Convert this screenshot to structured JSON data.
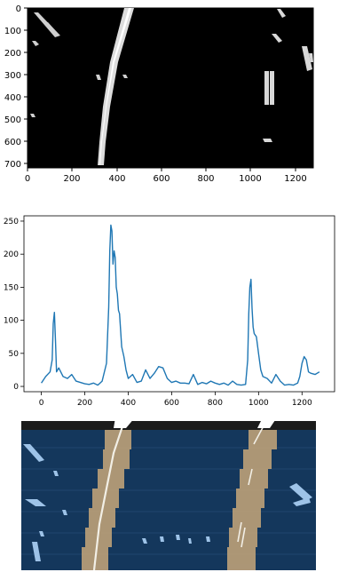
{
  "panels": {
    "binary_image": {
      "x_ticks": [
        "0",
        "200",
        "400",
        "600",
        "800",
        "1000",
        "1200"
      ],
      "y_ticks": [
        "0",
        "100",
        "200",
        "300",
        "400",
        "500",
        "600",
        "700"
      ],
      "xlim": [
        0,
        1280
      ],
      "ylim": [
        720,
        0
      ],
      "background": "#000000",
      "lane_color": "#ffffff"
    },
    "histogram": {},
    "sliding_windows": {
      "background": "#14375c",
      "window_color": "#c7a77a"
    }
  },
  "chart_data": {
    "type": "line",
    "x": [
      0,
      20,
      40,
      50,
      55,
      60,
      65,
      70,
      80,
      100,
      120,
      140,
      160,
      180,
      200,
      220,
      240,
      260,
      280,
      300,
      310,
      315,
      320,
      325,
      330,
      335,
      340,
      345,
      350,
      355,
      360,
      370,
      380,
      390,
      400,
      420,
      440,
      460,
      480,
      500,
      520,
      540,
      560,
      580,
      600,
      620,
      640,
      660,
      680,
      700,
      720,
      740,
      760,
      780,
      800,
      820,
      840,
      860,
      880,
      900,
      920,
      940,
      950,
      955,
      960,
      965,
      970,
      975,
      980,
      990,
      1000,
      1010,
      1020,
      1040,
      1060,
      1080,
      1100,
      1120,
      1140,
      1160,
      1180,
      1190,
      1200,
      1210,
      1220,
      1230,
      1240,
      1260,
      1280
    ],
    "series": [
      {
        "values": [
          5,
          15,
          22,
          40,
          95,
          112,
          70,
          22,
          28,
          15,
          12,
          18,
          8,
          6,
          4,
          3,
          5,
          2,
          8,
          35,
          120,
          205,
          244,
          235,
          185,
          205,
          195,
          150,
          140,
          115,
          110,
          60,
          45,
          25,
          12,
          18,
          6,
          8,
          25,
          12,
          20,
          30,
          28,
          12,
          6,
          8,
          5,
          5,
          4,
          18,
          3,
          6,
          4,
          8,
          5,
          3,
          5,
          2,
          8,
          3,
          2,
          3,
          40,
          110,
          150,
          162,
          118,
          90,
          80,
          75,
          50,
          25,
          15,
          12,
          5,
          18,
          8,
          2,
          3,
          2,
          5,
          15,
          35,
          45,
          40,
          22,
          20,
          18,
          22
        ],
        "color": "#1f77b4"
      }
    ],
    "xlim": [
      -80,
      1350
    ],
    "ylim": [
      -8,
      258
    ],
    "x_ticks": [
      "0",
      "200",
      "400",
      "600",
      "800",
      "1000",
      "1200"
    ],
    "y_ticks": [
      "0",
      "50",
      "100",
      "150",
      "200",
      "250"
    ]
  }
}
